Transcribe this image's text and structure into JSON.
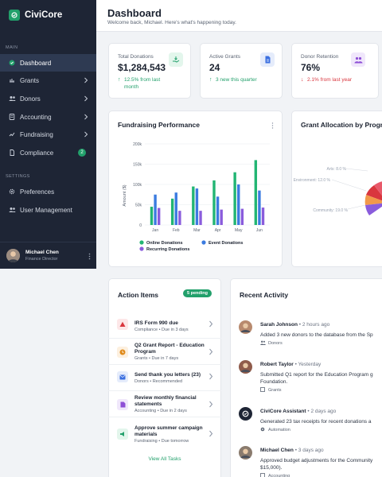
{
  "app": {
    "name": "CiviCore"
  },
  "sidebar": {
    "main_label": "MAIN",
    "settings_label": "SETTINGS",
    "items": [
      {
        "label": "Dashboard",
        "icon": "dashboard-icon",
        "active": true
      },
      {
        "label": "Grants",
        "icon": "grants-icon"
      },
      {
        "label": "Donors",
        "icon": "donors-icon"
      },
      {
        "label": "Accounting",
        "icon": "accounting-icon"
      },
      {
        "label": "Fundraising",
        "icon": "fundraising-icon"
      },
      {
        "label": "Compliance",
        "icon": "compliance-icon",
        "badge": "2"
      }
    ],
    "settings_items": [
      {
        "label": "Preferences",
        "icon": "gear-icon"
      },
      {
        "label": "User Management",
        "icon": "users-icon"
      }
    ],
    "user": {
      "name": "Michael Chen",
      "role": "Finance Director"
    }
  },
  "header": {
    "title": "Dashboard",
    "subtitle": "Welcome back, Michael. Here's what's happening today."
  },
  "stats": [
    {
      "label": "Total Donations",
      "value": "$1,284,543",
      "change": "12.5% from last month",
      "direction": "up",
      "icon": "donation-hand-icon",
      "color": "#22a06b",
      "bg": "#e3f6ec"
    },
    {
      "label": "Active Grants",
      "value": "24",
      "change": "3 new this quarter",
      "direction": "up",
      "icon": "document-icon",
      "color": "#3b6fe0",
      "bg": "#e5ecfb"
    },
    {
      "label": "Donor Retention",
      "value": "76%",
      "change": "2.1% from last year",
      "direction": "down",
      "icon": "people-icon",
      "color": "#8e4fd6",
      "bg": "#f0e7fb"
    }
  ],
  "fundraising": {
    "title": "Fundraising Performance"
  },
  "grant_allocation": {
    "title": "Grant Allocation by Progr",
    "labels": [
      "Arts: 8.0 %",
      "Environment: 12.0 %",
      "Community: 19.0 %"
    ]
  },
  "chart_data": {
    "type": "bar",
    "categories": [
      "Jan",
      "Feb",
      "Mar",
      "Apr",
      "May",
      "Jun"
    ],
    "series": [
      {
        "name": "Online Donations",
        "color": "#22b573",
        "values": [
          45000,
          65000,
          95000,
          110000,
          130000,
          160000
        ]
      },
      {
        "name": "Event Donations",
        "color": "#3b7be0",
        "values": [
          75000,
          80000,
          90000,
          70000,
          100000,
          85000
        ]
      },
      {
        "name": "Recurring Donations",
        "color": "#8a5cdc",
        "values": [
          42000,
          35000,
          35000,
          38000,
          40000,
          43000
        ]
      }
    ],
    "yticks": [
      "0",
      "50k",
      "100k",
      "150k",
      "200k"
    ],
    "ylim": [
      0,
      200000
    ],
    "ylabel": "Amount ($)",
    "legend": "bottom"
  },
  "action_items": {
    "title": "Action Items",
    "pending": "5 pending",
    "items": [
      {
        "title": "IRS Form 990 due",
        "meta": "Compliance • Due in 3 days",
        "icon": "alert-icon",
        "color": "#d9363e",
        "bg": "#fde7e8"
      },
      {
        "title": "Q2 Grant Report - Education Program",
        "meta": "Grants • Due in 7 days",
        "icon": "clock-icon",
        "color": "#e08a1a",
        "bg": "#fdf0df"
      },
      {
        "title": "Send thank you letters (23)",
        "meta": "Donors • Recommended",
        "icon": "mail-icon",
        "color": "#3b6fe0",
        "bg": "#e5ecfb"
      },
      {
        "title": "Review monthly financial statements",
        "meta": "Accounting • Due in 2 days",
        "icon": "file-icon",
        "color": "#8e4fd6",
        "bg": "#f0e7fb"
      },
      {
        "title": "Approve summer campaign materials",
        "meta": "Fundraising • Due tomorrow",
        "icon": "megaphone-icon",
        "color": "#22a06b",
        "bg": "#e3f6ec"
      }
    ],
    "view_all": "View All Tasks"
  },
  "recent_activity": {
    "title": "Recent Activity",
    "items": [
      {
        "name": "Sarah Johnson",
        "time": "2 hours ago",
        "body": [
          "Added 3 new donors to the database from the Sp"
        ],
        "tag": "Donors",
        "avatar_color": "#b88a6e"
      },
      {
        "name": "Robert Taylor",
        "time": "Yesterday",
        "body": [
          "Submitted Q1 report for the Education Program g",
          "Foundation."
        ],
        "tag": "Grants",
        "avatar_color": "#8f5b4a"
      },
      {
        "name": "CiviCore Assistant",
        "time": "2 days ago",
        "body": [
          "Generated 23 tax receipts for recent donations a"
        ],
        "tag": "Automation",
        "avatar_color": "#1e2535"
      },
      {
        "name": "Michael Chen",
        "time": "3 days ago",
        "body": [
          "Approved budget adjustments for the Community",
          "$15,000)."
        ],
        "tag": "Accounting",
        "avatar_color": "#8a7b6e"
      }
    ]
  }
}
